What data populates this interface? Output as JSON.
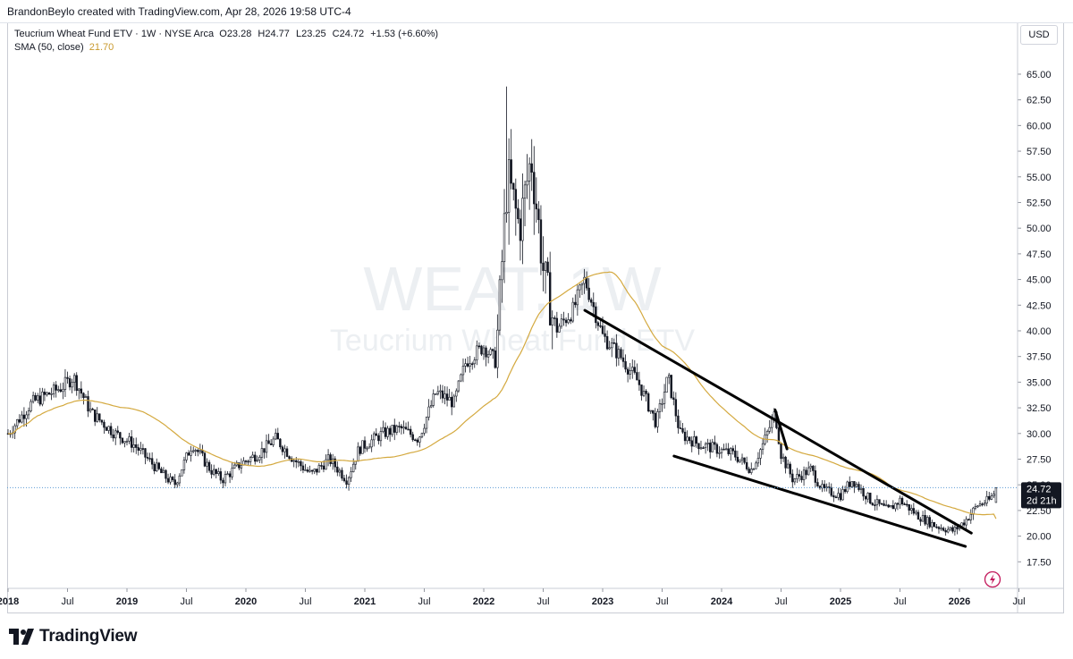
{
  "header": {
    "caption": "BrandonBeylo created with TradingView.com, Apr 28, 2026 19:58 UTC-4"
  },
  "legend": {
    "symbol": "Teucrium Wheat Fund ETV · 1W · NYSE Arca",
    "open_label": "O",
    "open": "23.28",
    "high_label": "H",
    "high": "24.77",
    "low_label": "L",
    "low": "23.25",
    "close_label": "C",
    "close": "24.72",
    "change": "+1.53 (+6.60%)",
    "sma_label": "SMA (50, close)",
    "sma_value": "21.70"
  },
  "currency": "USD",
  "watermark": {
    "ticker": "WEAT, 1W",
    "name": "Teucrium Wheat Fund ETV"
  },
  "price_badge": {
    "price": "24.72",
    "countdown": "2d 21h"
  },
  "brand": "TradingView",
  "icons": {
    "logo": "tradingview-logo-icon",
    "flash": "lightning-icon"
  },
  "colors": {
    "candle": "#131722",
    "sma": "#d4a93f",
    "trendline": "#000000",
    "price_line": "#5b9bd5",
    "badge": "#131722",
    "flash": "#9c27b0"
  },
  "chart_data": {
    "type": "candlestick",
    "title": "Teucrium Wheat Fund ETV · 1W · NYSE Arca",
    "ylim": [
      15.0,
      67.0
    ],
    "y_ticks": [
      "65.00",
      "62.50",
      "60.00",
      "57.50",
      "55.00",
      "52.50",
      "50.00",
      "47.50",
      "45.00",
      "42.50",
      "40.00",
      "37.50",
      "35.00",
      "32.50",
      "30.00",
      "27.50",
      "25.00",
      "22.50",
      "20.00",
      "17.50"
    ],
    "x_ticks": [
      {
        "label": "2018",
        "t": 2018.0,
        "bold": true
      },
      {
        "label": "Jul",
        "t": 2018.5,
        "bold": false
      },
      {
        "label": "2019",
        "t": 2019.0,
        "bold": true
      },
      {
        "label": "Jul",
        "t": 2019.5,
        "bold": false
      },
      {
        "label": "2020",
        "t": 2020.0,
        "bold": true
      },
      {
        "label": "Jul",
        "t": 2020.5,
        "bold": false
      },
      {
        "label": "2021",
        "t": 2021.0,
        "bold": true
      },
      {
        "label": "Jul",
        "t": 2021.5,
        "bold": false
      },
      {
        "label": "2022",
        "t": 2022.0,
        "bold": true
      },
      {
        "label": "Jul",
        "t": 2022.5,
        "bold": false
      },
      {
        "label": "2023",
        "t": 2023.0,
        "bold": true
      },
      {
        "label": "Jul",
        "t": 2023.5,
        "bold": false
      },
      {
        "label": "2024",
        "t": 2024.0,
        "bold": true
      },
      {
        "label": "Jul",
        "t": 2024.5,
        "bold": false
      },
      {
        "label": "2025",
        "t": 2025.0,
        "bold": true
      },
      {
        "label": "Jul",
        "t": 2025.5,
        "bold": false
      },
      {
        "label": "2026",
        "t": 2026.0,
        "bold": true
      },
      {
        "label": "Jul",
        "t": 2026.5,
        "bold": false
      }
    ],
    "price_anchors": [
      [
        2018.0,
        30.0
      ],
      [
        2018.2,
        33.0
      ],
      [
        2018.45,
        34.5
      ],
      [
        2018.55,
        35.5
      ],
      [
        2018.7,
        32.0
      ],
      [
        2018.9,
        30.0
      ],
      [
        2019.05,
        29.0
      ],
      [
        2019.3,
        26.0
      ],
      [
        2019.4,
        25.0
      ],
      [
        2019.55,
        29.0
      ],
      [
        2019.7,
        26.5
      ],
      [
        2019.8,
        25.5
      ],
      [
        2019.95,
        27.0
      ],
      [
        2020.1,
        28.0
      ],
      [
        2020.25,
        29.5
      ],
      [
        2020.4,
        27.5
      ],
      [
        2020.55,
        26.0
      ],
      [
        2020.7,
        27.5
      ],
      [
        2020.85,
        25.5
      ],
      [
        2020.95,
        28.5
      ],
      [
        2021.15,
        30.0
      ],
      [
        2021.3,
        30.5
      ],
      [
        2021.45,
        29.5
      ],
      [
        2021.6,
        34.0
      ],
      [
        2021.75,
        33.0
      ],
      [
        2021.85,
        37.0
      ],
      [
        2022.0,
        38.5
      ],
      [
        2022.1,
        37.0
      ],
      [
        2022.2,
        55.0
      ],
      [
        2022.3,
        50.0
      ],
      [
        2022.4,
        57.0
      ],
      [
        2022.5,
        46.0
      ],
      [
        2022.6,
        40.0
      ],
      [
        2022.75,
        42.0
      ],
      [
        2022.85,
        45.0
      ],
      [
        2023.0,
        39.5
      ],
      [
        2023.15,
        37.5
      ],
      [
        2023.3,
        35.0
      ],
      [
        2023.45,
        31.0
      ],
      [
        2023.55,
        35.5
      ],
      [
        2023.65,
        30.0
      ],
      [
        2023.8,
        29.0
      ],
      [
        2023.95,
        28.5
      ],
      [
        2024.1,
        28.0
      ],
      [
        2024.25,
        26.5
      ],
      [
        2024.35,
        29.0
      ],
      [
        2024.45,
        32.0
      ],
      [
        2024.5,
        28.0
      ],
      [
        2024.6,
        25.5
      ],
      [
        2024.75,
        26.5
      ],
      [
        2024.85,
        24.5
      ],
      [
        2025.0,
        24.0
      ],
      [
        2025.1,
        25.5
      ],
      [
        2025.25,
        23.5
      ],
      [
        2025.4,
        22.5
      ],
      [
        2025.5,
        23.5
      ],
      [
        2025.65,
        22.0
      ],
      [
        2025.8,
        21.0
      ],
      [
        2025.95,
        20.5
      ],
      [
        2026.05,
        21.5
      ],
      [
        2026.15,
        23.0
      ],
      [
        2026.25,
        23.5
      ],
      [
        2026.32,
        24.72
      ]
    ],
    "trendlines": [
      {
        "t1": 2022.85,
        "p1": 42.0,
        "t2": 2026.1,
        "p2": 20.3
      },
      {
        "t1": 2023.6,
        "p1": 27.8,
        "t2": 2026.05,
        "p2": 19.0
      },
      {
        "t1": 2024.45,
        "p1": 32.3,
        "t2": 2024.55,
        "p2": 28.5
      }
    ],
    "last_price": 24.72
  }
}
